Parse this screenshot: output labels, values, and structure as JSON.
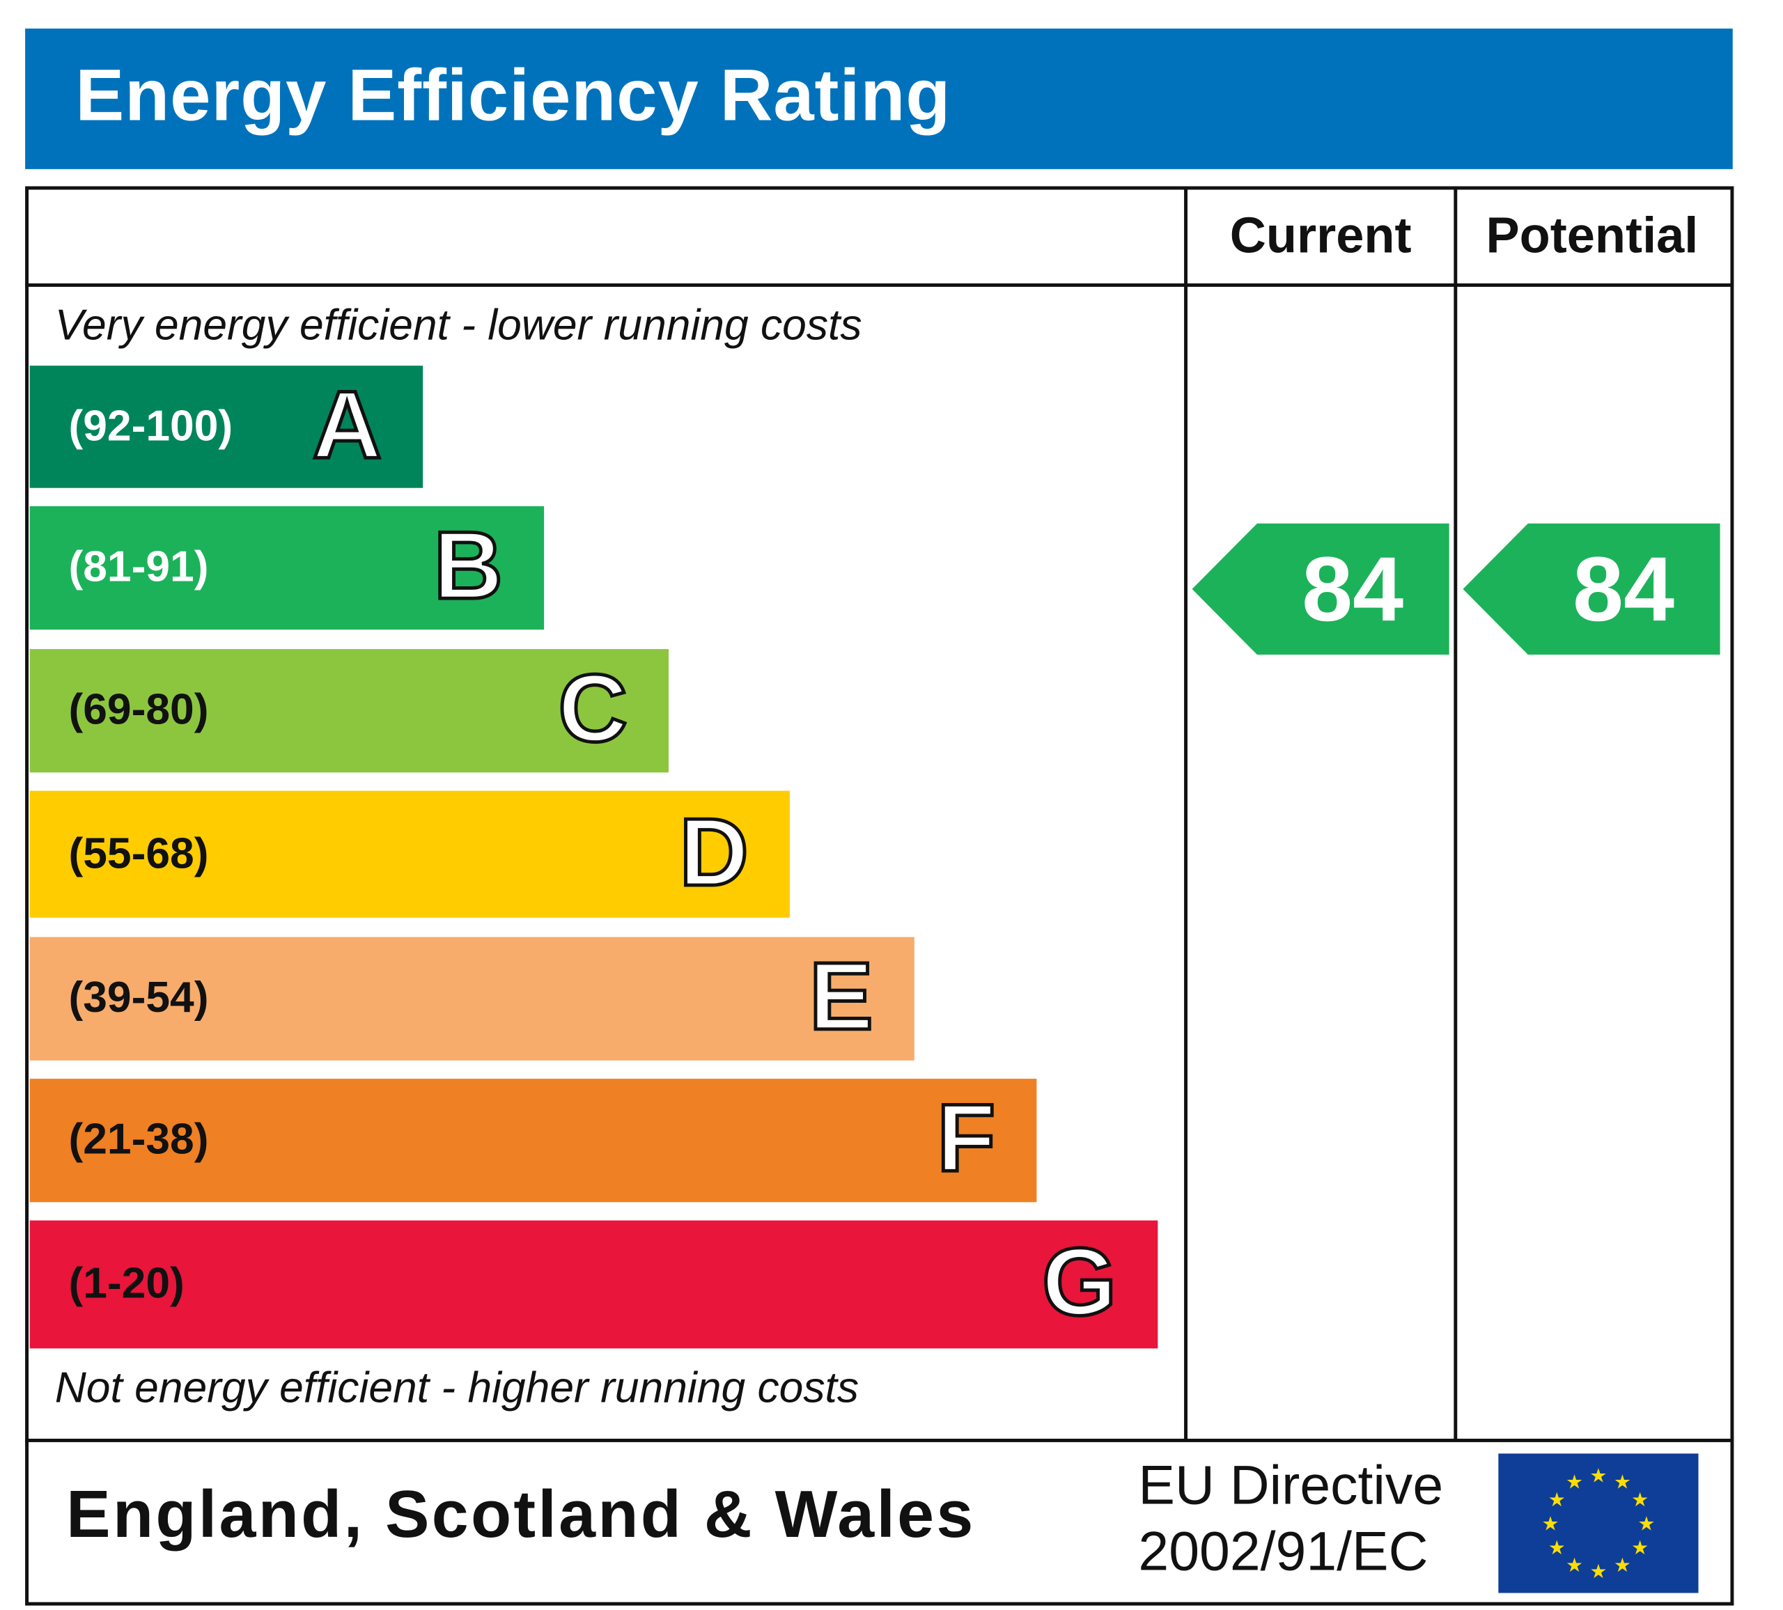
{
  "title": "Energy Efficiency Rating",
  "columns": {
    "current": "Current",
    "potential": "Potential"
  },
  "top_note": "Very energy efficient - lower running costs",
  "bottom_note": "Not energy efficient - higher running costs",
  "bands": [
    {
      "letter": "A",
      "range": "(92-100)",
      "color": "#00855a",
      "text_color": "#ffffff"
    },
    {
      "letter": "B",
      "range": "(81-91)",
      "color": "#1cb25a",
      "text_color": "#ffffff"
    },
    {
      "letter": "C",
      "range": "(69-80)",
      "color": "#8cc63f",
      "text_color": "#111111"
    },
    {
      "letter": "D",
      "range": "(55-68)",
      "color": "#ffcc00",
      "text_color": "#111111"
    },
    {
      "letter": "E",
      "range": "(39-54)",
      "color": "#f7ac6b",
      "text_color": "#111111"
    },
    {
      "letter": "F",
      "range": "(21-38)",
      "color": "#ef8023",
      "text_color": "#111111"
    },
    {
      "letter": "G",
      "range": "(1-20)",
      "color": "#e9153b",
      "text_color": "#111111"
    }
  ],
  "current_rating": {
    "value": "84",
    "band": "B",
    "color": "#1cb25a"
  },
  "potential_rating": {
    "value": "84",
    "band": "B",
    "color": "#1cb25a"
  },
  "region": "England, Scotland & Wales",
  "directive": {
    "line1": "EU Directive",
    "line2": "2002/91/EC"
  },
  "flag": {
    "name": "eu-flag",
    "background": "#0e3e97",
    "star_color": "#ffdd00"
  }
}
